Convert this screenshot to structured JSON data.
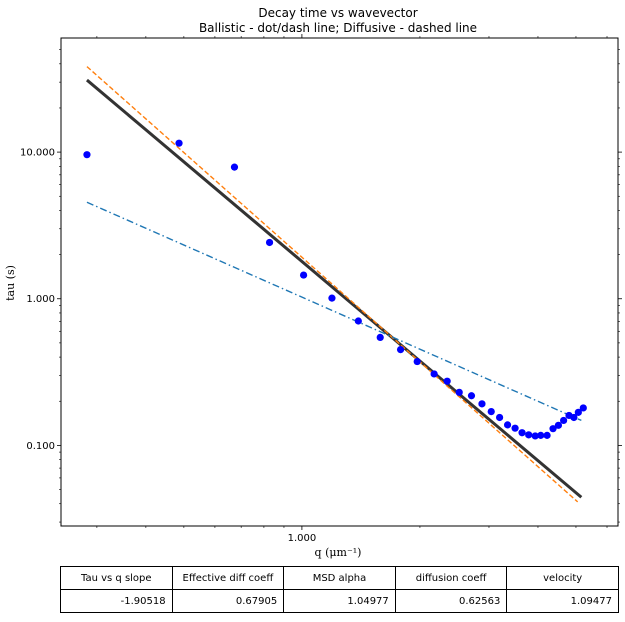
{
  "chart_data": {
    "type": "scatter",
    "title": "Decay time vs wavevector",
    "subtitle": "Ballistic - dot/dash line; Diffusive - dashed line",
    "xlabel": "q (μm⁻¹)",
    "ylabel": "tau (s)",
    "xscale": "log",
    "yscale": "log",
    "xlim": [
      0.243,
      6.4
    ],
    "ylim": [
      0.0282,
      60.0
    ],
    "x_ticks": [
      {
        "value": 1.0,
        "label": "1.000"
      }
    ],
    "y_ticks": [
      {
        "value": 10.0,
        "label": "10.000"
      },
      {
        "value": 1.0,
        "label": "1.000"
      },
      {
        "value": 0.1,
        "label": "0.100"
      }
    ],
    "grid": false,
    "points": {
      "name": "data",
      "color": "#0000ff",
      "x": [
        0.283,
        0.486,
        0.673,
        0.827,
        1.01,
        1.193,
        1.393,
        1.584,
        1.785,
        1.968,
        2.174,
        2.347,
        2.519,
        2.707,
        2.879,
        3.04,
        3.193,
        3.346,
        3.497,
        3.643,
        3.788,
        3.936,
        4.066,
        4.22,
        4.37,
        4.51,
        4.65,
        4.8,
        4.94,
        5.07,
        5.22
      ],
      "y": [
        9.6,
        11.5,
        7.9,
        2.42,
        1.45,
        1.01,
        0.705,
        0.545,
        0.45,
        0.373,
        0.307,
        0.274,
        0.23,
        0.218,
        0.192,
        0.17,
        0.155,
        0.138,
        0.131,
        0.122,
        0.118,
        0.116,
        0.117,
        0.117,
        0.13,
        0.137,
        0.148,
        0.16,
        0.155,
        0.168,
        0.18
      ]
    },
    "series": [
      {
        "style": "solid",
        "color": "#333333",
        "x": [
          0.283,
          5.16
        ],
        "y": [
          31.0,
          0.0443
        ]
      },
      {
        "style": "dashed",
        "color": "#ff7f0e",
        "x": [
          0.283,
          5.05
        ],
        "y": [
          38.3,
          0.0412
        ]
      },
      {
        "style": "dashdot",
        "color": "#1f77b4",
        "x": [
          0.283,
          5.16
        ],
        "y": [
          4.55,
          0.148
        ]
      }
    ]
  },
  "table": {
    "headers": [
      "Tau vs q slope",
      "Effective diff coeff",
      "MSD alpha",
      "diffusion coeff",
      "velocity"
    ],
    "values": [
      "-1.90518",
      "0.67905",
      "1.04977",
      "0.62563",
      "1.09477"
    ]
  }
}
